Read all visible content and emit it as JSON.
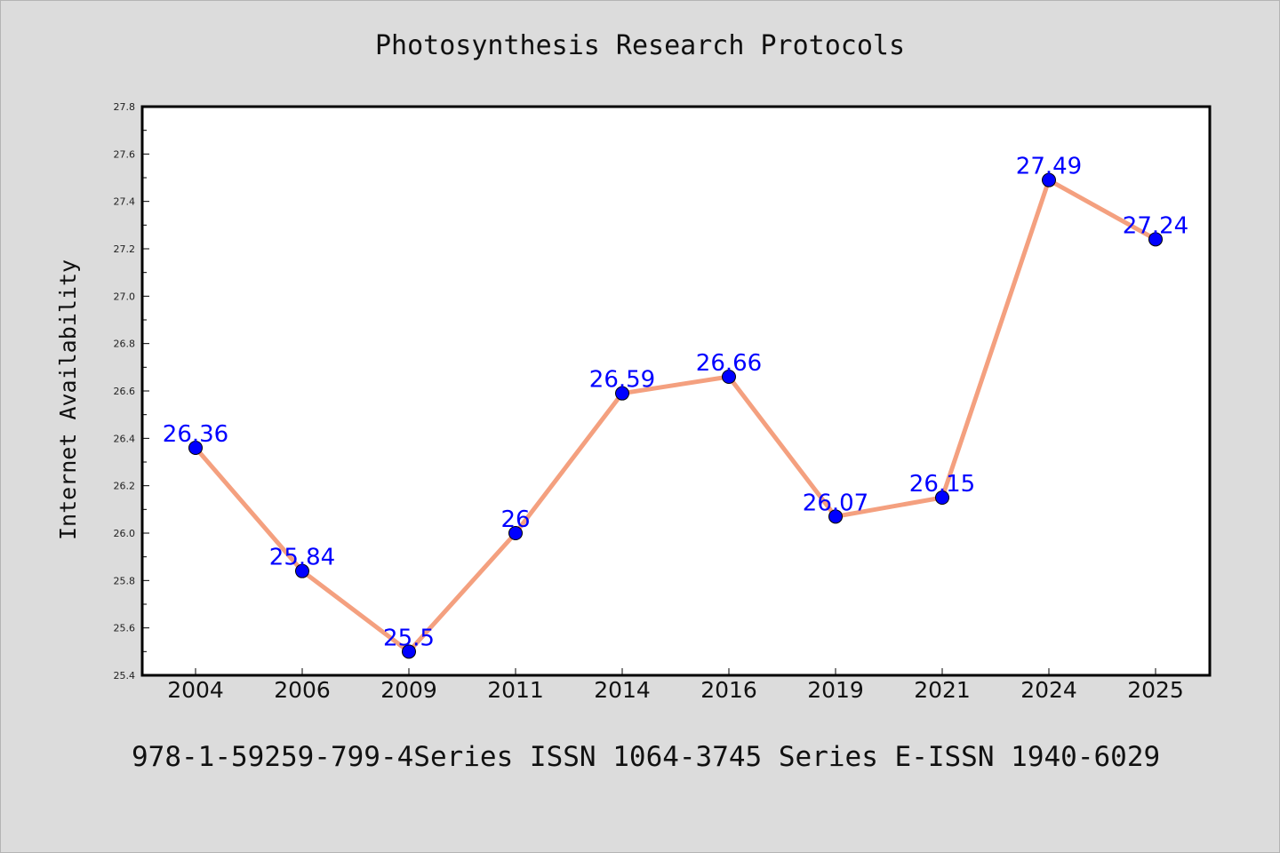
{
  "chart_data": {
    "type": "line",
    "title": "Photosynthesis Research Protocols",
    "xlabel": "",
    "ylabel": "Internet Availability",
    "categories": [
      "2004",
      "2006",
      "2009",
      "2011",
      "2014",
      "2016",
      "2019",
      "2021",
      "2024",
      "2025"
    ],
    "series": [
      {
        "values": [
          26.36,
          25.84,
          25.5,
          26.0,
          26.59,
          26.66,
          26.07,
          26.15,
          27.49,
          27.24
        ],
        "labels": [
          "26.36",
          "25.84",
          "25.5",
          "26",
          "26.59",
          "26.66",
          "26.07",
          "26.15",
          "27.49",
          "27.24"
        ],
        "line_color": "#f4a07f",
        "marker_color": "#0000ff"
      }
    ],
    "ylim": [
      25.4,
      27.8
    ],
    "yticks": [
      "25.4",
      "25.6",
      "25.8",
      "26.0",
      "26.2",
      "26.4",
      "26.6",
      "26.8",
      "27.0",
      "27.2",
      "27.4",
      "27.6",
      "27.8"
    ],
    "grid": false,
    "legend": "none",
    "background": "#dcdcdc",
    "plot_background": "#ffffff"
  },
  "footer": "978-1-59259-799-4Series ISSN 1064-3745 Series E-ISSN 1940-6029"
}
